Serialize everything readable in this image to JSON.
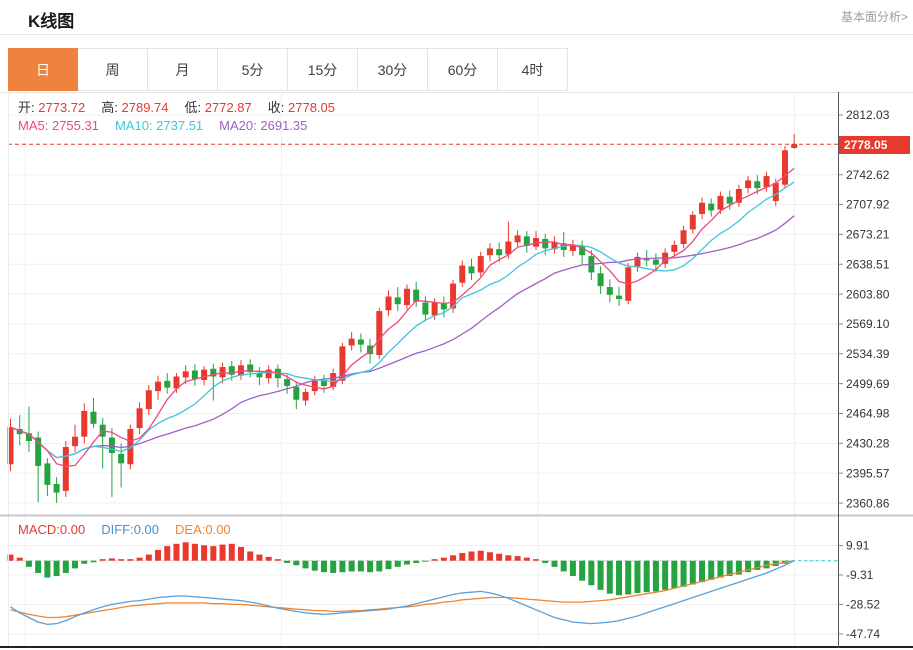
{
  "header": {
    "title": "K线图",
    "link": "基本面分析>"
  },
  "tabs": [
    {
      "id": "day",
      "label": "日",
      "active": true
    },
    {
      "id": "week",
      "label": "周",
      "active": false
    },
    {
      "id": "month",
      "label": "月",
      "active": false
    },
    {
      "id": "5min",
      "label": "5分",
      "active": false
    },
    {
      "id": "15min",
      "label": "15分",
      "active": false
    },
    {
      "id": "30min",
      "label": "30分",
      "active": false
    },
    {
      "id": "60min",
      "label": "60分",
      "active": false
    },
    {
      "id": "4hour",
      "label": "4时",
      "active": false
    }
  ],
  "ohlc": {
    "open_label": "开:",
    "open": "2773.72",
    "high_label": "高:",
    "high": "2789.74",
    "low_label": "低:",
    "low": "2772.87",
    "close_label": "收:",
    "close": "2778.05"
  },
  "ma": {
    "ma5_label": "MA5:",
    "ma5": "2755.31",
    "ma10_label": "MA10:",
    "ma10": "2737.51",
    "ma20_label": "MA20:",
    "ma20": "2691.35"
  },
  "macd_info": {
    "macd_label": "MACD:",
    "macd": "0.00",
    "diff_label": "DIFF:",
    "diff": "0.00",
    "dea_label": "DEA:",
    "dea": "0.00"
  },
  "chart_data": {
    "type": "candlestick",
    "panels": [
      "price",
      "macd"
    ],
    "current_price": 2778.05,
    "current_price_label": "2778.05",
    "main_axis": {
      "max": 2812.03,
      "min": 2360.86,
      "tick_labels": [
        "2812.03",
        "2742.62",
        "2707.92",
        "2673.21",
        "2638.51",
        "2603.80",
        "2569.10",
        "2534.39",
        "2499.69",
        "2464.98",
        "2430.28",
        "2395.57",
        "2360.86"
      ],
      "tick_values": [
        2812.03,
        2742.62,
        2707.92,
        2673.21,
        2638.51,
        2603.8,
        2569.1,
        2534.39,
        2499.69,
        2464.98,
        2430.28,
        2395.57,
        2360.86
      ]
    },
    "macd_axis": {
      "tick_labels": [
        "9.91",
        "-9.31",
        "-28.52",
        "-47.74"
      ],
      "tick_values": [
        9.91,
        -9.31,
        -28.52,
        -47.74
      ]
    },
    "ma_series": [
      {
        "name": "MA5",
        "period": 5,
        "color": "#f0497c",
        "last_value": 2755.31
      },
      {
        "name": "MA10",
        "period": 10,
        "color": "#3ec6d8",
        "last_value": 2737.51
      },
      {
        "name": "MA20",
        "period": 20,
        "color": "#a05fc5",
        "last_value": 2691.35
      }
    ],
    "candles": [
      [
        2406,
        2459,
        2398,
        2449
      ],
      [
        2447,
        2463,
        2428,
        2441
      ],
      [
        2442,
        2473,
        2420,
        2433
      ],
      [
        2437,
        2444,
        2362,
        2404
      ],
      [
        2407,
        2413,
        2369,
        2382
      ],
      [
        2383,
        2391,
        2361,
        2373
      ],
      [
        2375,
        2433,
        2368,
        2426
      ],
      [
        2427,
        2452,
        2420,
        2438
      ],
      [
        2438,
        2477,
        2430,
        2468
      ],
      [
        2467,
        2483,
        2448,
        2453
      ],
      [
        2452,
        2460,
        2401,
        2438
      ],
      [
        2437,
        2448,
        2368,
        2419
      ],
      [
        2418,
        2430,
        2379,
        2407
      ],
      [
        2406,
        2452,
        2400,
        2447
      ],
      [
        2448,
        2478,
        2441,
        2471
      ],
      [
        2470,
        2498,
        2463,
        2492
      ],
      [
        2491,
        2509,
        2481,
        2502
      ],
      [
        2503,
        2512,
        2488,
        2495
      ],
      [
        2494,
        2512,
        2489,
        2508
      ],
      [
        2507,
        2521,
        2499,
        2514
      ],
      [
        2515,
        2522,
        2497,
        2505
      ],
      [
        2504,
        2520,
        2498,
        2516
      ],
      [
        2517,
        2523,
        2480,
        2508
      ],
      [
        2507,
        2524,
        2500,
        2519
      ],
      [
        2520,
        2526,
        2503,
        2510
      ],
      [
        2509,
        2527,
        2504,
        2521
      ],
      [
        2522,
        2528,
        2507,
        2513
      ],
      [
        2512,
        2519,
        2498,
        2507
      ],
      [
        2506,
        2521,
        2500,
        2516
      ],
      [
        2517,
        2522,
        2495,
        2506
      ],
      [
        2505,
        2510,
        2488,
        2497
      ],
      [
        2496,
        2502,
        2470,
        2481
      ],
      [
        2480,
        2494,
        2474,
        2490
      ],
      [
        2491,
        2509,
        2486,
        2503
      ],
      [
        2504,
        2510,
        2489,
        2497
      ],
      [
        2496,
        2517,
        2492,
        2512
      ],
      [
        2503,
        2547,
        2499,
        2543
      ],
      [
        2544,
        2560,
        2538,
        2552
      ],
      [
        2551,
        2558,
        2536,
        2545
      ],
      [
        2544,
        2552,
        2523,
        2534
      ],
      [
        2533,
        2588,
        2528,
        2584
      ],
      [
        2585,
        2608,
        2578,
        2601
      ],
      [
        2600,
        2612,
        2584,
        2592
      ],
      [
        2591,
        2615,
        2586,
        2610
      ],
      [
        2609,
        2618,
        2589,
        2595
      ],
      [
        2594,
        2601,
        2572,
        2580
      ],
      [
        2579,
        2599,
        2574,
        2594
      ],
      [
        2593,
        2601,
        2577,
        2586
      ],
      [
        2587,
        2620,
        2582,
        2616
      ],
      [
        2617,
        2643,
        2612,
        2637
      ],
      [
        2636,
        2645,
        2620,
        2628
      ],
      [
        2629,
        2653,
        2624,
        2648
      ],
      [
        2649,
        2663,
        2642,
        2657
      ],
      [
        2656,
        2664,
        2641,
        2649
      ],
      [
        2650,
        2688,
        2645,
        2665
      ],
      [
        2664,
        2678,
        2658,
        2672
      ],
      [
        2671,
        2677,
        2652,
        2660
      ],
      [
        2659,
        2677,
        2655,
        2669
      ],
      [
        2668,
        2674,
        2649,
        2657
      ],
      [
        2656,
        2671,
        2651,
        2664
      ],
      [
        2663,
        2676,
        2647,
        2655
      ],
      [
        2654,
        2667,
        2648,
        2661
      ],
      [
        2660,
        2666,
        2638,
        2649
      ],
      [
        2648,
        2655,
        2620,
        2629
      ],
      [
        2628,
        2636,
        2604,
        2613
      ],
      [
        2612,
        2621,
        2594,
        2603
      ],
      [
        2602,
        2612,
        2590,
        2598
      ],
      [
        2596,
        2640,
        2592,
        2635
      ],
      [
        2636,
        2652,
        2630,
        2647
      ],
      [
        2646,
        2655,
        2636,
        2643
      ],
      [
        2644,
        2651,
        2630,
        2638
      ],
      [
        2639,
        2657,
        2634,
        2652
      ],
      [
        2653,
        2666,
        2647,
        2661
      ],
      [
        2662,
        2683,
        2657,
        2678
      ],
      [
        2679,
        2700,
        2674,
        2696
      ],
      [
        2697,
        2716,
        2691,
        2710
      ],
      [
        2709,
        2715,
        2694,
        2701
      ],
      [
        2702,
        2723,
        2697,
        2718
      ],
      [
        2717,
        2724,
        2702,
        2709
      ],
      [
        2710,
        2731,
        2705,
        2726
      ],
      [
        2727,
        2741,
        2721,
        2736
      ],
      [
        2735,
        2742,
        2720,
        2727
      ],
      [
        2728,
        2746,
        2723,
        2741
      ],
      [
        2712,
        2738,
        2706,
        2733
      ],
      [
        2731,
        2776,
        2726,
        2771
      ],
      [
        2773.72,
        2789.74,
        2772.87,
        2778.05
      ]
    ],
    "macd": {
      "hist": [
        4,
        2,
        -4,
        -8,
        -11,
        -10,
        -8,
        -5,
        -2,
        -1,
        1,
        1.5,
        1,
        1,
        2,
        4,
        7,
        9.5,
        11,
        12,
        11,
        10,
        9.5,
        10.5,
        11,
        9,
        6,
        4,
        2.5,
        1,
        -1.5,
        -3,
        -5,
        -6.5,
        -7.5,
        -8,
        -7.5,
        -7,
        -7,
        -7.5,
        -7,
        -5.5,
        -4,
        -2.5,
        -1.5,
        -0.5,
        1,
        2,
        3.5,
        5,
        6,
        6.5,
        5.5,
        4.5,
        3.5,
        3,
        2,
        1,
        -1.5,
        -4,
        -7,
        -10,
        -13,
        -16,
        -19,
        -21.5,
        -22.5,
        -22,
        -21,
        -20.5,
        -20,
        -19,
        -18,
        -17,
        -15.5,
        -14,
        -12.5,
        -11,
        -10,
        -9,
        -7.5,
        -6,
        -5,
        -3.5,
        -2,
        0
      ],
      "diff": [
        -30,
        -34,
        -37,
        -40,
        -41.5,
        -41,
        -39,
        -36.5,
        -34,
        -32,
        -30,
        -28.5,
        -27.5,
        -26.5,
        -26,
        -25,
        -24,
        -23.5,
        -23,
        -23,
        -23.5,
        -24,
        -24.5,
        -25,
        -25.5,
        -26,
        -27,
        -28,
        -29.5,
        -31,
        -32,
        -33,
        -34,
        -34.5,
        -35,
        -34.5,
        -34,
        -33.5,
        -33,
        -32.5,
        -32,
        -31.5,
        -30.5,
        -29.5,
        -28,
        -26.5,
        -25,
        -23.5,
        -22,
        -21,
        -20.5,
        -20,
        -21,
        -22.5,
        -24.5,
        -27,
        -29.5,
        -32,
        -34.5,
        -37,
        -38.5,
        -40,
        -40.5,
        -41,
        -40.5,
        -40,
        -39,
        -37.5,
        -36,
        -34,
        -32,
        -30,
        -28,
        -26,
        -24,
        -22,
        -20,
        -18,
        -16,
        -14,
        -12,
        -10,
        -8,
        -5.5,
        -3,
        0
      ],
      "dea": [
        -32,
        -33.5,
        -35,
        -36,
        -37,
        -37,
        -36.5,
        -35.5,
        -34.5,
        -33.5,
        -32.5,
        -31.5,
        -30.5,
        -29.5,
        -29,
        -28.5,
        -28,
        -27.5,
        -27.5,
        -27.5,
        -27.5,
        -27.5,
        -28,
        -28,
        -28.5,
        -28.5,
        -29,
        -29.5,
        -30,
        -30.5,
        -31,
        -31.5,
        -32,
        -32.5,
        -32.5,
        -33,
        -33,
        -32.5,
        -32.5,
        -32,
        -31.5,
        -31,
        -30.5,
        -30,
        -29.5,
        -28.5,
        -28,
        -27,
        -26.5,
        -25.5,
        -25,
        -24.5,
        -24,
        -24,
        -24,
        -24.5,
        -25,
        -25.5,
        -26,
        -26.5,
        -27,
        -27,
        -27,
        -26.5,
        -26,
        -25.5,
        -24.5,
        -23.5,
        -22.5,
        -21.5,
        -20.5,
        -19.5,
        -18,
        -16.5,
        -15,
        -13.5,
        -12,
        -10.5,
        -9,
        -7.5,
        -6,
        -4.5,
        -3,
        -2,
        -1,
        0
      ]
    },
    "colors": {
      "up": "#e8392e",
      "down": "#26a341",
      "price_line": "#e8392e",
      "diff_line": "#5c9fd6",
      "dea_line": "#ef8532",
      "grid": "#f0f0f0",
      "axis": "#555555",
      "accent": "#f0823f"
    }
  }
}
